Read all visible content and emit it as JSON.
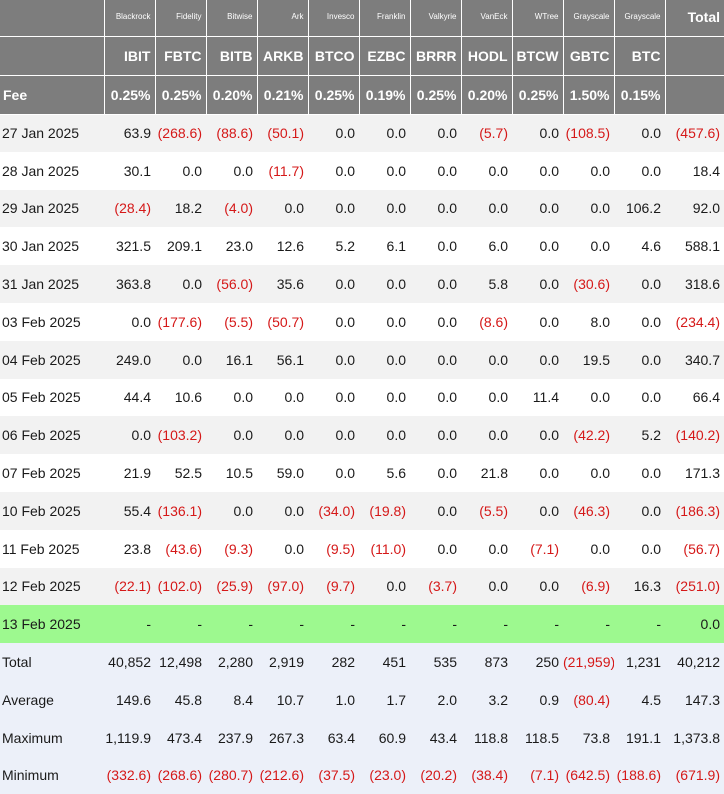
{
  "columns": [
    {
      "issuer": "Blackrock",
      "ticker": "IBIT",
      "fee": "0.25%"
    },
    {
      "issuer": "Fidelity",
      "ticker": "FBTC",
      "fee": "0.25%"
    },
    {
      "issuer": "Bitwise",
      "ticker": "BITB",
      "fee": "0.20%"
    },
    {
      "issuer": "Ark",
      "ticker": "ARKB",
      "fee": "0.21%"
    },
    {
      "issuer": "Invesco",
      "ticker": "BTCO",
      "fee": "0.25%"
    },
    {
      "issuer": "Franklin",
      "ticker": "EZBC",
      "fee": "0.19%"
    },
    {
      "issuer": "Valkyrie",
      "ticker": "BRRR",
      "fee": "0.25%"
    },
    {
      "issuer": "VanEck",
      "ticker": "HODL",
      "fee": "0.20%"
    },
    {
      "issuer": "WTree",
      "ticker": "BTCW",
      "fee": "0.25%"
    },
    {
      "issuer": "Grayscale",
      "ticker": "GBTC",
      "fee": "1.50%"
    },
    {
      "issuer": "Grayscale",
      "ticker": "BTC",
      "fee": "0.15%"
    }
  ],
  "total_header": "Total",
  "fee_label": "Fee",
  "rows": [
    {
      "date": "27 Jan 2025",
      "values": [
        "63.9",
        "(268.6)",
        "(88.6)",
        "(50.1)",
        "0.0",
        "0.0",
        "0.0",
        "(5.7)",
        "0.0",
        "(108.5)",
        "0.0"
      ],
      "total": "(457.6)"
    },
    {
      "date": "28 Jan 2025",
      "values": [
        "30.1",
        "0.0",
        "0.0",
        "(11.7)",
        "0.0",
        "0.0",
        "0.0",
        "0.0",
        "0.0",
        "0.0",
        "0.0"
      ],
      "total": "18.4"
    },
    {
      "date": "29 Jan 2025",
      "values": [
        "(28.4)",
        "18.2",
        "(4.0)",
        "0.0",
        "0.0",
        "0.0",
        "0.0",
        "0.0",
        "0.0",
        "0.0",
        "106.2"
      ],
      "total": "92.0"
    },
    {
      "date": "30 Jan 2025",
      "values": [
        "321.5",
        "209.1",
        "23.0",
        "12.6",
        "5.2",
        "6.1",
        "0.0",
        "6.0",
        "0.0",
        "0.0",
        "4.6"
      ],
      "total": "588.1"
    },
    {
      "date": "31 Jan 2025",
      "values": [
        "363.8",
        "0.0",
        "(56.0)",
        "35.6",
        "0.0",
        "0.0",
        "0.0",
        "5.8",
        "0.0",
        "(30.6)",
        "0.0"
      ],
      "total": "318.6"
    },
    {
      "date": "03 Feb 2025",
      "values": [
        "0.0",
        "(177.6)",
        "(5.5)",
        "(50.7)",
        "0.0",
        "0.0",
        "0.0",
        "(8.6)",
        "0.0",
        "8.0",
        "0.0"
      ],
      "total": "(234.4)"
    },
    {
      "date": "04 Feb 2025",
      "values": [
        "249.0",
        "0.0",
        "16.1",
        "56.1",
        "0.0",
        "0.0",
        "0.0",
        "0.0",
        "0.0",
        "19.5",
        "0.0"
      ],
      "total": "340.7"
    },
    {
      "date": "05 Feb 2025",
      "values": [
        "44.4",
        "10.6",
        "0.0",
        "0.0",
        "0.0",
        "0.0",
        "0.0",
        "0.0",
        "11.4",
        "0.0",
        "0.0"
      ],
      "total": "66.4"
    },
    {
      "date": "06 Feb 2025",
      "values": [
        "0.0",
        "(103.2)",
        "0.0",
        "0.0",
        "0.0",
        "0.0",
        "0.0",
        "0.0",
        "0.0",
        "(42.2)",
        "5.2"
      ],
      "total": "(140.2)"
    },
    {
      "date": "07 Feb 2025",
      "values": [
        "21.9",
        "52.5",
        "10.5",
        "59.0",
        "0.0",
        "5.6",
        "0.0",
        "21.8",
        "0.0",
        "0.0",
        "0.0"
      ],
      "total": "171.3"
    },
    {
      "date": "10 Feb 2025",
      "values": [
        "55.4",
        "(136.1)",
        "0.0",
        "0.0",
        "(34.0)",
        "(19.8)",
        "0.0",
        "(5.5)",
        "0.0",
        "(46.3)",
        "0.0"
      ],
      "total": "(186.3)"
    },
    {
      "date": "11 Feb 2025",
      "values": [
        "23.8",
        "(43.6)",
        "(9.3)",
        "0.0",
        "(9.5)",
        "(11.0)",
        "0.0",
        "0.0",
        "(7.1)",
        "0.0",
        "0.0"
      ],
      "total": "(56.7)"
    },
    {
      "date": "12 Feb 2025",
      "values": [
        "(22.1)",
        "(102.0)",
        "(25.9)",
        "(97.0)",
        "(9.7)",
        "0.0",
        "(3.7)",
        "0.0",
        "0.0",
        "(6.9)",
        "16.3"
      ],
      "total": "(251.0)"
    },
    {
      "date": "13 Feb 2025",
      "values": [
        "-",
        "-",
        "-",
        "-",
        "-",
        "-",
        "-",
        "-",
        "-",
        "-",
        "-"
      ],
      "total": "0.0",
      "highlight": true
    }
  ],
  "summary": [
    {
      "label": "Total",
      "values": [
        "40,852",
        "12,498",
        "2,280",
        "2,919",
        "282",
        "451",
        "535",
        "873",
        "250",
        "(21,959)",
        "1,231"
      ],
      "total": "40,212"
    },
    {
      "label": "Average",
      "values": [
        "149.6",
        "45.8",
        "8.4",
        "10.7",
        "1.0",
        "1.7",
        "2.0",
        "3.2",
        "0.9",
        "(80.4)",
        "4.5"
      ],
      "total": "147.3"
    },
    {
      "label": "Maximum",
      "values": [
        "1,119.9",
        "473.4",
        "237.9",
        "267.3",
        "63.4",
        "60.9",
        "43.4",
        "118.8",
        "118.5",
        "73.8",
        "191.1"
      ],
      "total": "1,373.8"
    },
    {
      "label": "Minimum",
      "values": [
        "(332.6)",
        "(268.6)",
        "(280.7)",
        "(212.6)",
        "(37.5)",
        "(23.0)",
        "(20.2)",
        "(38.4)",
        "(7.1)",
        "(642.5)",
        "(188.6)"
      ],
      "total": "(671.9)"
    }
  ],
  "colors": {
    "header_bg": "#7d7d7d",
    "negative": "#d51818",
    "highlight_row": "#9df98f",
    "summary_bg": "#ecf0f9"
  }
}
